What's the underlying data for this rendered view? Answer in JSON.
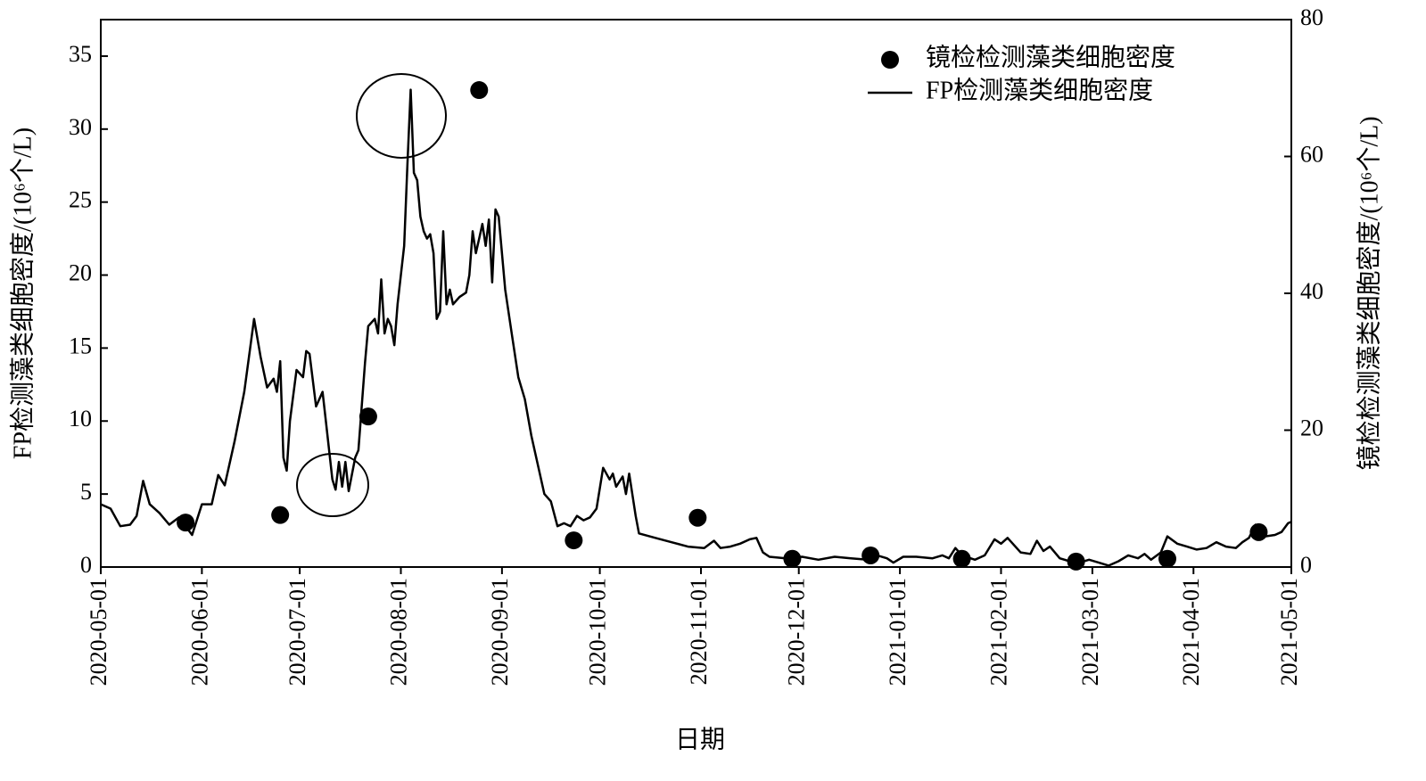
{
  "chart_data": {
    "type": "line",
    "xlabel": "日期",
    "ylabel": "FP检测藻类细胞密度/(10⁶个/L)",
    "y2label": "镜检检测藻类细胞密度/(10⁶个/L)",
    "xlim": [
      "2020-05-01",
      "2021-05-01"
    ],
    "xticks": [
      "2020-05-01",
      "2020-06-01",
      "2020-07-01",
      "2020-08-01",
      "2020-09-01",
      "2020-10-01",
      "2020-11-01",
      "2020-12-01",
      "2021-01-01",
      "2021-02-01",
      "2021-03-01",
      "2021-04-01",
      "2021-05-01"
    ],
    "ylim": [
      0,
      37.5
    ],
    "yticks": [
      0,
      5,
      10,
      15,
      20,
      25,
      30,
      35
    ],
    "y2lim": [
      0,
      80
    ],
    "y2ticks": [
      0,
      20,
      40,
      60,
      80
    ],
    "legend": "upper right",
    "series": [
      {
        "name": "镜检检测藻类细胞密度",
        "type": "scatter",
        "axis": "y2",
        "color": "#000000",
        "x": [
          "2020-05-27",
          "2020-06-25",
          "2020-07-22",
          "2020-08-25",
          "2020-09-23",
          "2020-10-31",
          "2020-11-29",
          "2020-12-23",
          "2021-01-20",
          "2021-02-24",
          "2021-03-24",
          "2021-04-21"
        ],
        "values": [
          6.5,
          7.6,
          22.0,
          69.7,
          3.9,
          7.2,
          1.2,
          1.7,
          1.2,
          0.8,
          1.2,
          5.1
        ]
      },
      {
        "name": "FP检测藻类细胞密度",
        "type": "line",
        "color": "#000000",
        "x": [
          "2020-05-01",
          "2020-05-04",
          "2020-05-07",
          "2020-05-10",
          "2020-05-12",
          "2020-05-14",
          "2020-05-16",
          "2020-05-19",
          "2020-05-22",
          "2020-05-25",
          "2020-05-27",
          "2020-05-29",
          "2020-06-01",
          "2020-06-04",
          "2020-06-06",
          "2020-06-08",
          "2020-06-11",
          "2020-06-14",
          "2020-06-17",
          "2020-06-19",
          "2020-06-21",
          "2020-06-23",
          "2020-06-24",
          "2020-06-25",
          "2020-06-26",
          "2020-06-27",
          "2020-06-28",
          "2020-06-30",
          "2020-07-02",
          "2020-07-03",
          "2020-07-04",
          "2020-07-06",
          "2020-07-07",
          "2020-07-08",
          "2020-07-09",
          "2020-07-11",
          "2020-07-12",
          "2020-07-13",
          "2020-07-14",
          "2020-07-15",
          "2020-07-16",
          "2020-07-18",
          "2020-07-19",
          "2020-07-20",
          "2020-07-21",
          "2020-07-22",
          "2020-07-24",
          "2020-07-25",
          "2020-07-26",
          "2020-07-27",
          "2020-07-28",
          "2020-07-29",
          "2020-07-30",
          "2020-07-31",
          "2020-08-01",
          "2020-08-02",
          "2020-08-03",
          "2020-08-04",
          "2020-08-05",
          "2020-08-06",
          "2020-08-07",
          "2020-08-08",
          "2020-08-09",
          "2020-08-10",
          "2020-08-11",
          "2020-08-12",
          "2020-08-13",
          "2020-08-14",
          "2020-08-15",
          "2020-08-16",
          "2020-08-17",
          "2020-08-19",
          "2020-08-21",
          "2020-08-22",
          "2020-08-23",
          "2020-08-24",
          "2020-08-25",
          "2020-08-26",
          "2020-08-27",
          "2020-08-28",
          "2020-08-29",
          "2020-08-30",
          "2020-08-31",
          "2020-09-02",
          "2020-09-04",
          "2020-09-06",
          "2020-09-08",
          "2020-09-10",
          "2020-09-12",
          "2020-09-14",
          "2020-09-16",
          "2020-09-18",
          "2020-09-20",
          "2020-09-22",
          "2020-09-24",
          "2020-09-26",
          "2020-09-28",
          "2020-09-30",
          "2020-10-02",
          "2020-10-04",
          "2020-10-05",
          "2020-10-06",
          "2020-10-08",
          "2020-10-09",
          "2020-10-10",
          "2020-10-12",
          "2020-10-13",
          "2020-10-18",
          "2020-10-23",
          "2020-10-28",
          "2020-11-02",
          "2020-11-05",
          "2020-11-07",
          "2020-11-10",
          "2020-11-13",
          "2020-11-16",
          "2020-11-18",
          "2020-11-20",
          "2020-11-22",
          "2020-11-27",
          "2020-12-02",
          "2020-12-07",
          "2020-12-12",
          "2020-12-17",
          "2020-12-22",
          "2020-12-25",
          "2020-12-28",
          "2020-12-30",
          "2021-01-02",
          "2021-01-06",
          "2021-01-11",
          "2021-01-14",
          "2021-01-16",
          "2021-01-18",
          "2021-01-20",
          "2021-01-24",
          "2021-01-27",
          "2021-01-30",
          "2021-02-01",
          "2021-02-03",
          "2021-02-05",
          "2021-02-07",
          "2021-02-10",
          "2021-02-12",
          "2021-02-14",
          "2021-02-16",
          "2021-02-19",
          "2021-02-22",
          "2021-02-25",
          "2021-02-28",
          "2021-03-03",
          "2021-03-06",
          "2021-03-09",
          "2021-03-12",
          "2021-03-15",
          "2021-03-17",
          "2021-03-19",
          "2021-03-22",
          "2021-03-24",
          "2021-03-27",
          "2021-03-30",
          "2021-04-02",
          "2021-04-05",
          "2021-04-08",
          "2021-04-11",
          "2021-04-14",
          "2021-04-16",
          "2021-04-18",
          "2021-04-20",
          "2021-04-23",
          "2021-04-26",
          "2021-04-28",
          "2021-04-30",
          "2021-05-01"
        ],
        "values": [
          4.3,
          4.0,
          2.8,
          2.9,
          3.5,
          5.9,
          4.3,
          3.7,
          2.9,
          3.4,
          2.8,
          2.2,
          4.3,
          4.3,
          6.3,
          5.6,
          8.6,
          12.0,
          17.0,
          14.4,
          12.3,
          12.9,
          12.0,
          14.1,
          7.5,
          6.6,
          10.0,
          13.5,
          13.0,
          14.8,
          14.6,
          11.0,
          11.5,
          12.0,
          10.0,
          6.0,
          5.3,
          7.2,
          5.5,
          7.2,
          5.2,
          7.5,
          8.0,
          11.0,
          14.0,
          16.5,
          17.0,
          16.0,
          19.7,
          16.0,
          17.0,
          16.5,
          15.2,
          18.0,
          20.0,
          22.0,
          27.5,
          32.7,
          27.0,
          26.5,
          24.0,
          23.0,
          22.5,
          22.8,
          21.5,
          17.0,
          17.5,
          23.0,
          18.0,
          19.0,
          18.0,
          18.5,
          18.8,
          20.0,
          23.0,
          21.5,
          22.5,
          23.5,
          22.0,
          23.8,
          19.5,
          24.5,
          24.0,
          19.0,
          16.0,
          13.0,
          11.5,
          9.0,
          7.0,
          5.0,
          4.5,
          2.8,
          3.0,
          2.8,
          3.5,
          3.2,
          3.4,
          4.0,
          6.8,
          6.0,
          6.4,
          5.5,
          6.2,
          5.0,
          6.4,
          3.5,
          2.3,
          2.0,
          1.7,
          1.4,
          1.3,
          1.8,
          1.3,
          1.4,
          1.6,
          1.9,
          2.0,
          1.0,
          0.7,
          0.6,
          0.7,
          0.5,
          0.7,
          0.6,
          0.5,
          0.8,
          0.6,
          0.3,
          0.7,
          0.7,
          0.6,
          0.8,
          0.6,
          1.3,
          0.8,
          0.5,
          0.8,
          1.9,
          1.6,
          2.0,
          1.5,
          1.0,
          0.9,
          1.8,
          1.1,
          1.4,
          0.6,
          0.4,
          0.3,
          0.5,
          0.3,
          0.1,
          0.4,
          0.8,
          0.6,
          0.9,
          0.5,
          1.0,
          2.1,
          1.6,
          1.4,
          1.2,
          1.3,
          1.7,
          1.4,
          1.3,
          1.7,
          2.0,
          2.9,
          2.1,
          2.2,
          2.4,
          3.0,
          3.1
        ]
      }
    ]
  }
}
